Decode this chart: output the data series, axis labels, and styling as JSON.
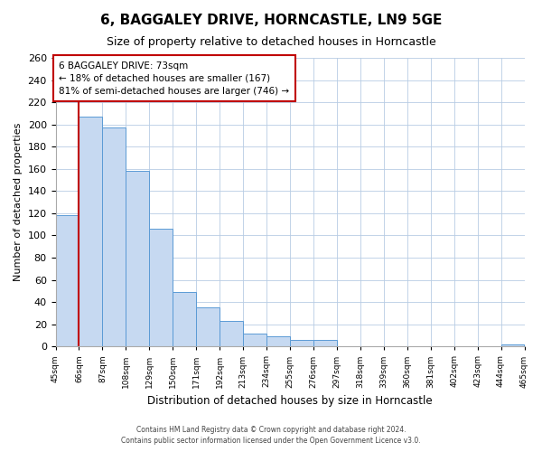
{
  "title": "6, BAGGALEY DRIVE, HORNCASTLE, LN9 5GE",
  "subtitle": "Size of property relative to detached houses in Horncastle",
  "xlabel": "Distribution of detached houses by size in Horncastle",
  "ylabel": "Number of detached properties",
  "bar_values": [
    118,
    207,
    197,
    158,
    106,
    49,
    35,
    23,
    12,
    9,
    6,
    6,
    0,
    0,
    0,
    0,
    0,
    0,
    0,
    2
  ],
  "bar_labels": [
    "45sqm",
    "66sqm",
    "87sqm",
    "108sqm",
    "129sqm",
    "150sqm",
    "171sqm",
    "192sqm",
    "213sqm",
    "234sqm",
    "255sqm",
    "276sqm",
    "297sqm",
    "318sqm",
    "339sqm",
    "360sqm",
    "381sqm",
    "402sqm",
    "423sqm",
    "444sqm",
    "465sqm"
  ],
  "bar_color": "#c6d9f1",
  "bar_edge_color": "#5b9bd5",
  "ylim": [
    0,
    260
  ],
  "yticks": [
    0,
    20,
    40,
    60,
    80,
    100,
    120,
    140,
    160,
    180,
    200,
    220,
    240,
    260
  ],
  "property_line_x": 1.0,
  "property_line_color": "#c00000",
  "annotation_title": "6 BAGGALEY DRIVE: 73sqm",
  "annotation_line1": "← 18% of detached houses are smaller (167)",
  "annotation_line2": "81% of semi-detached houses are larger (746) →",
  "annotation_box_edge": "#c00000",
  "footer_line1": "Contains HM Land Registry data © Crown copyright and database right 2024.",
  "footer_line2": "Contains public sector information licensed under the Open Government Licence v3.0.",
  "background_color": "#ffffff",
  "grid_color": "#b8cce4"
}
